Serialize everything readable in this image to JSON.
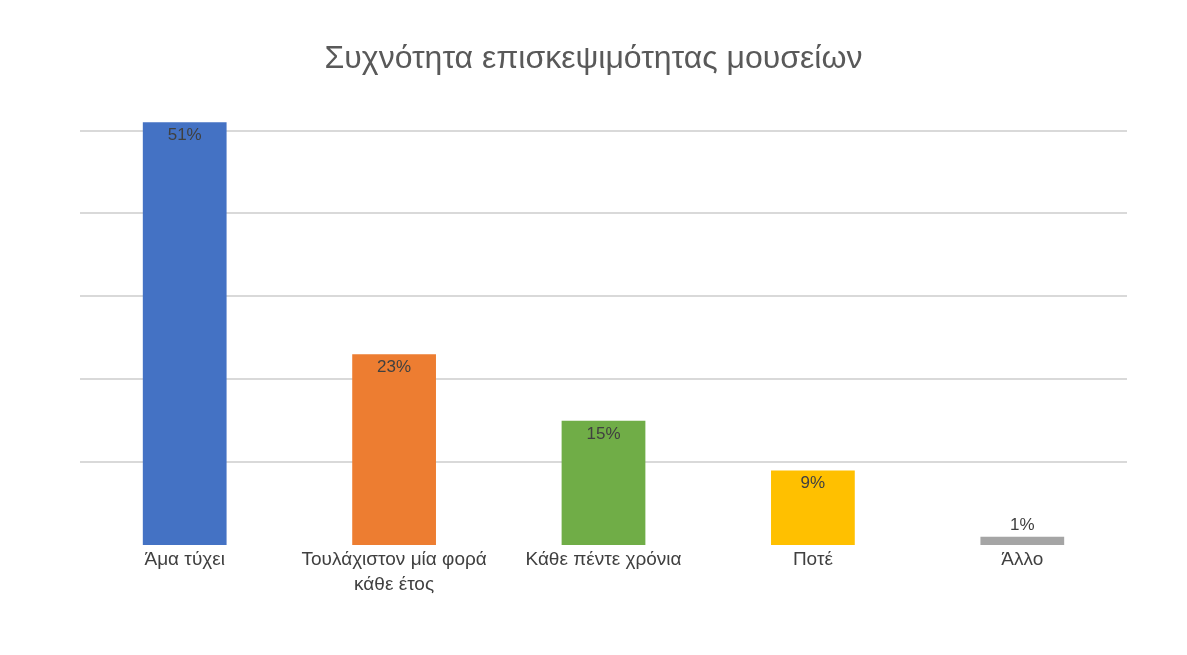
{
  "chart_data": {
    "type": "bar",
    "title": "Συχνότητα επισκεψιμότητας μουσείων",
    "categories": [
      "Άμα τύχει",
      "Τουλάχιστον μία φορά κάθε έτος",
      "Κάθε πέντε χρόνια",
      "Ποτέ",
      "Άλλο"
    ],
    "values": [
      51,
      23,
      15,
      9,
      1
    ],
    "colors": [
      "#4472c4",
      "#ed7d31",
      "#70ad47",
      "#ffc000",
      "#a5a5a5"
    ],
    "value_labels": [
      "51%",
      "23%",
      "15%",
      "9%",
      "1%"
    ],
    "tick_labels": "x",
    "grid": "y"
  }
}
